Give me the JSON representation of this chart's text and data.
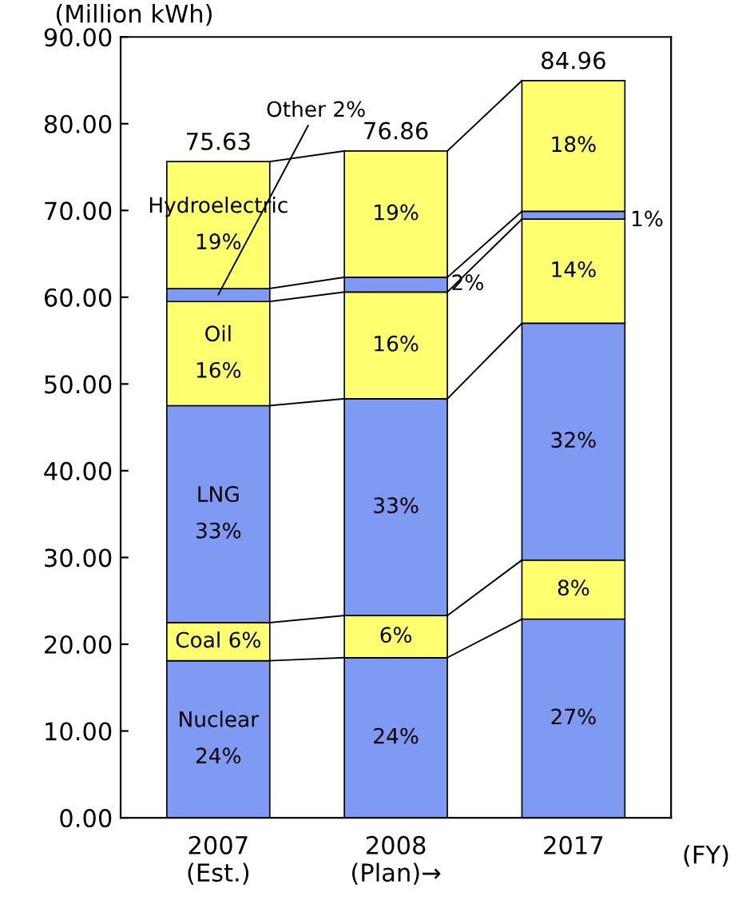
{
  "chart_data": {
    "type": "bar",
    "stacked": true,
    "ylabel": "(Million kWh)",
    "xlabel": "(FY)",
    "categories": [
      "2007\n(Est.)",
      "2008\n(Plan)→",
      "2017"
    ],
    "series": [
      {
        "name": "Nuclear",
        "color": "#7f9af2",
        "values": [
          18.1,
          18.45,
          22.9
        ]
      },
      {
        "name": "Coal",
        "color": "#ffff70",
        "values": [
          4.4,
          4.85,
          6.8
        ]
      },
      {
        "name": "LNG",
        "color": "#7f9af2",
        "values": [
          25.0,
          25.0,
          27.3
        ]
      },
      {
        "name": "Oil",
        "color": "#ffff70",
        "values": [
          12.0,
          12.3,
          12.0
        ]
      },
      {
        "color": "#7f9af2",
        "values": [
          1.5,
          1.7,
          0.9
        ]
      },
      {
        "name": "Hydroelectric",
        "color": "#ffff70",
        "values": [
          14.63,
          14.56,
          15.06
        ]
      }
    ],
    "annotations": [
      "24%",
      "24%",
      "27%",
      "6%",
      "6%",
      "8%",
      "33%",
      "33%",
      "32%",
      "16%",
      "16%",
      "14%",
      {
        "text": "Other 2%",
        "x": "2007\n(Est.)",
        "y": 60.3
      },
      {
        "text": "2%",
        "x": "2008\n(Plan)→",
        "y": 61.5
      },
      "1%",
      "19%",
      "19%",
      "18%"
    ],
    "totals": [
      "75.63",
      "76.86",
      "84.96"
    ],
    "ylim": [
      0,
      90
    ],
    "yticks": [
      {
        "value": 0,
        "label": "0.00"
      },
      {
        "value": 10,
        "label": "10.00"
      },
      {
        "value": 20,
        "label": "20.00"
      },
      {
        "value": 30,
        "label": "30.00"
      },
      {
        "value": 40,
        "label": "40.00"
      },
      {
        "value": 50,
        "label": "50.00"
      },
      {
        "value": 60,
        "label": "60.00"
      },
      {
        "value": 70,
        "label": "70.00"
      },
      {
        "value": 80,
        "label": "80.00"
      },
      {
        "value": 90,
        "label": "90.00"
      }
    ],
    "grid": false,
    "legend": false
  }
}
